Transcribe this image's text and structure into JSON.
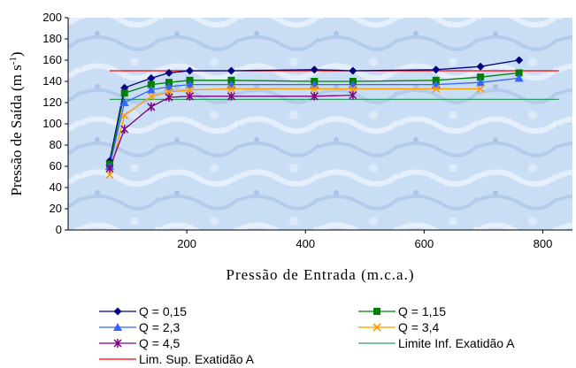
{
  "chart_data": {
    "type": "line",
    "xlabel": "Pressão de Entrada (m.c.a.)",
    "ylabel_main": "Pressão de Saída (m s",
    "ylabel_sup": "-1",
    "ylabel_close": ")",
    "xlim": [
      0,
      850
    ],
    "ylim": [
      0,
      200
    ],
    "xticks": [
      200,
      400,
      600,
      800
    ],
    "yticks": [
      0,
      20,
      40,
      60,
      80,
      100,
      120,
      140,
      160,
      180,
      200
    ],
    "grid": false,
    "legend_position": "bottom",
    "series": [
      {
        "name": "Q = 0,15",
        "color": "#000080",
        "marker": "diamond",
        "x": [
          70,
          95,
          140,
          170,
          205,
          275,
          415,
          480,
          620,
          695,
          760
        ],
        "y": [
          65,
          134,
          143,
          148,
          150,
          150,
          151,
          150,
          151,
          154,
          160
        ]
      },
      {
        "name": "Q = 1,15",
        "color": "#008000",
        "marker": "square",
        "x": [
          70,
          95,
          140,
          170,
          205,
          275,
          415,
          480,
          620,
          695,
          760
        ],
        "y": [
          62,
          129,
          137,
          139,
          141,
          141,
          140,
          140,
          141,
          144,
          148
        ]
      },
      {
        "name": "Q = 2,3",
        "color": "#3366FF",
        "marker": "triangle",
        "x": [
          70,
          95,
          140,
          170,
          205,
          275,
          415,
          480,
          620,
          695,
          760
        ],
        "y": [
          60,
          120,
          132,
          135,
          137,
          137,
          137,
          137,
          137,
          139,
          143
        ]
      },
      {
        "name": "Q = 3,4",
        "color": "#FF9900",
        "marker": "x",
        "x": [
          70,
          95,
          140,
          170,
          205,
          275,
          415,
          480,
          620,
          695
        ],
        "y": [
          52,
          108,
          126,
          130,
          132,
          133,
          133,
          133,
          133,
          133
        ]
      },
      {
        "name": "Q = 4,5",
        "color": "#800080",
        "marker": "asterisk",
        "x": [
          70,
          95,
          140,
          170,
          205,
          275,
          415,
          480
        ],
        "y": [
          58,
          95,
          116,
          125,
          126,
          126,
          126,
          127
        ]
      }
    ],
    "reference_lines": [
      {
        "name": "Limite Inf. Exatidão A",
        "color": "#339966",
        "y": 123
      },
      {
        "name": "Lim. Sup. Exatidão A",
        "color": "#FF0000",
        "y": 150
      }
    ]
  }
}
